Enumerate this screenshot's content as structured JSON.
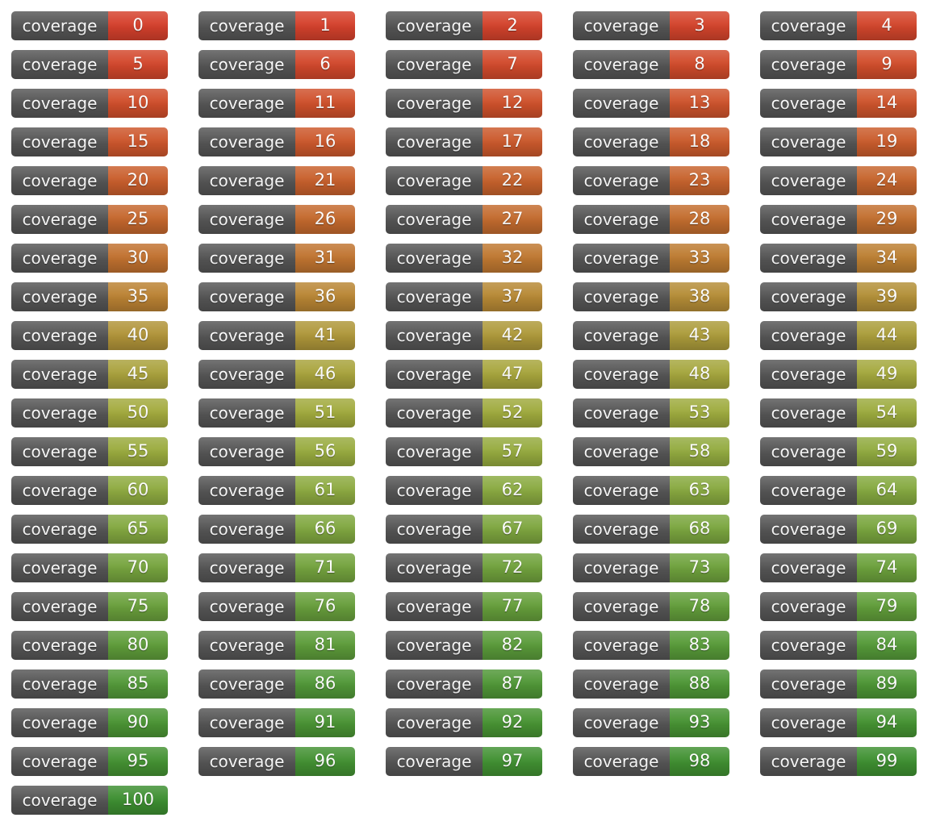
{
  "page": {
    "background_color": "#ffffff"
  },
  "badge": {
    "label": "coverage",
    "label_bg_color": "#555555",
    "text_color": "#ffffff"
  },
  "grid": {
    "columns": 5
  },
  "values": [
    0,
    1,
    2,
    3,
    4,
    5,
    6,
    7,
    8,
    9,
    10,
    11,
    12,
    13,
    14,
    15,
    16,
    17,
    18,
    19,
    20,
    21,
    22,
    23,
    24,
    25,
    26,
    27,
    28,
    29,
    30,
    31,
    32,
    33,
    34,
    35,
    36,
    37,
    38,
    39,
    40,
    41,
    42,
    43,
    44,
    45,
    46,
    47,
    48,
    49,
    50,
    51,
    52,
    53,
    54,
    55,
    56,
    57,
    58,
    59,
    60,
    61,
    62,
    63,
    64,
    65,
    66,
    67,
    68,
    69,
    70,
    71,
    72,
    73,
    74,
    75,
    76,
    77,
    78,
    79,
    80,
    81,
    82,
    83,
    84,
    85,
    86,
    87,
    88,
    89,
    90,
    91,
    92,
    93,
    94,
    95,
    96,
    97,
    98,
    99,
    100
  ],
  "color_scale": {
    "anchors": {
      "0": "#d5402c",
      "5": "#d3472c",
      "10": "#d04e2b",
      "15": "#cd562c",
      "20": "#c95e2c",
      "25": "#c5672d",
      "30": "#c1712f",
      "35": "#bb8233",
      "40": "#b19439",
      "45": "#a9a13c",
      "50": "#a3aa3d",
      "55": "#9aab3e",
      "60": "#8fab41",
      "65": "#83a840",
      "70": "#76a43e",
      "75": "#6aa03c",
      "80": "#5f9d3a",
      "85": "#539939",
      "90": "#4b9534",
      "95": "#449232",
      "100": "#3d8f31"
    }
  }
}
